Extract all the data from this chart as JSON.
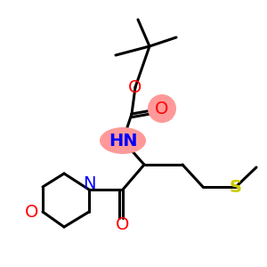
{
  "bg_color": "#ffffff",
  "atom_colors": {
    "N": "#0000ff",
    "O": "#ff0000",
    "S": "#cccc00"
  },
  "highlight_HN": "#ff9999",
  "highlight_O": "#ff9999",
  "bond_color": "#000000",
  "bond_lw": 2.2,
  "dbo": 0.012,
  "fs": 14
}
